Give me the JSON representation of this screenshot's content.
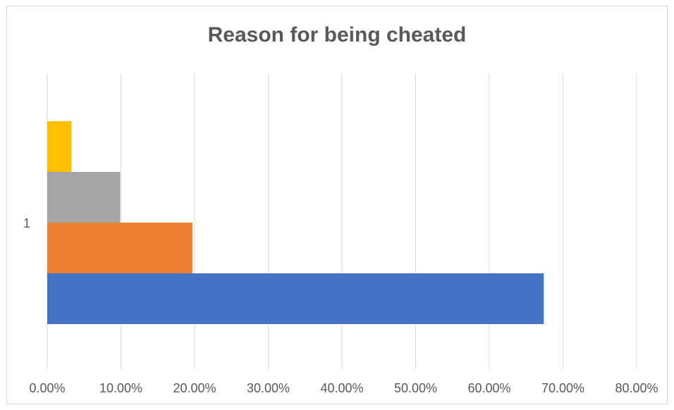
{
  "chart_data": {
    "type": "bar",
    "orientation": "horizontal",
    "title": "Reason for being cheated",
    "xlabel": "",
    "ylabel": "",
    "categories": [
      "1"
    ],
    "series": [
      {
        "values": [
          0.674
        ],
        "color": "#4472C4"
      },
      {
        "values": [
          0.197
        ],
        "color": "#ED7D31"
      },
      {
        "values": [
          0.099
        ],
        "color": "#A5A5A5"
      },
      {
        "values": [
          0.033
        ],
        "color": "#FFC000"
      }
    ],
    "xlim": [
      0,
      0.8
    ],
    "x_ticks": [
      "0.00%",
      "10.00%",
      "20.00%",
      "30.00%",
      "40.00%",
      "50.00%",
      "60.00%",
      "70.00%",
      "80.00%"
    ],
    "grid": "vertical",
    "legend": "none"
  }
}
